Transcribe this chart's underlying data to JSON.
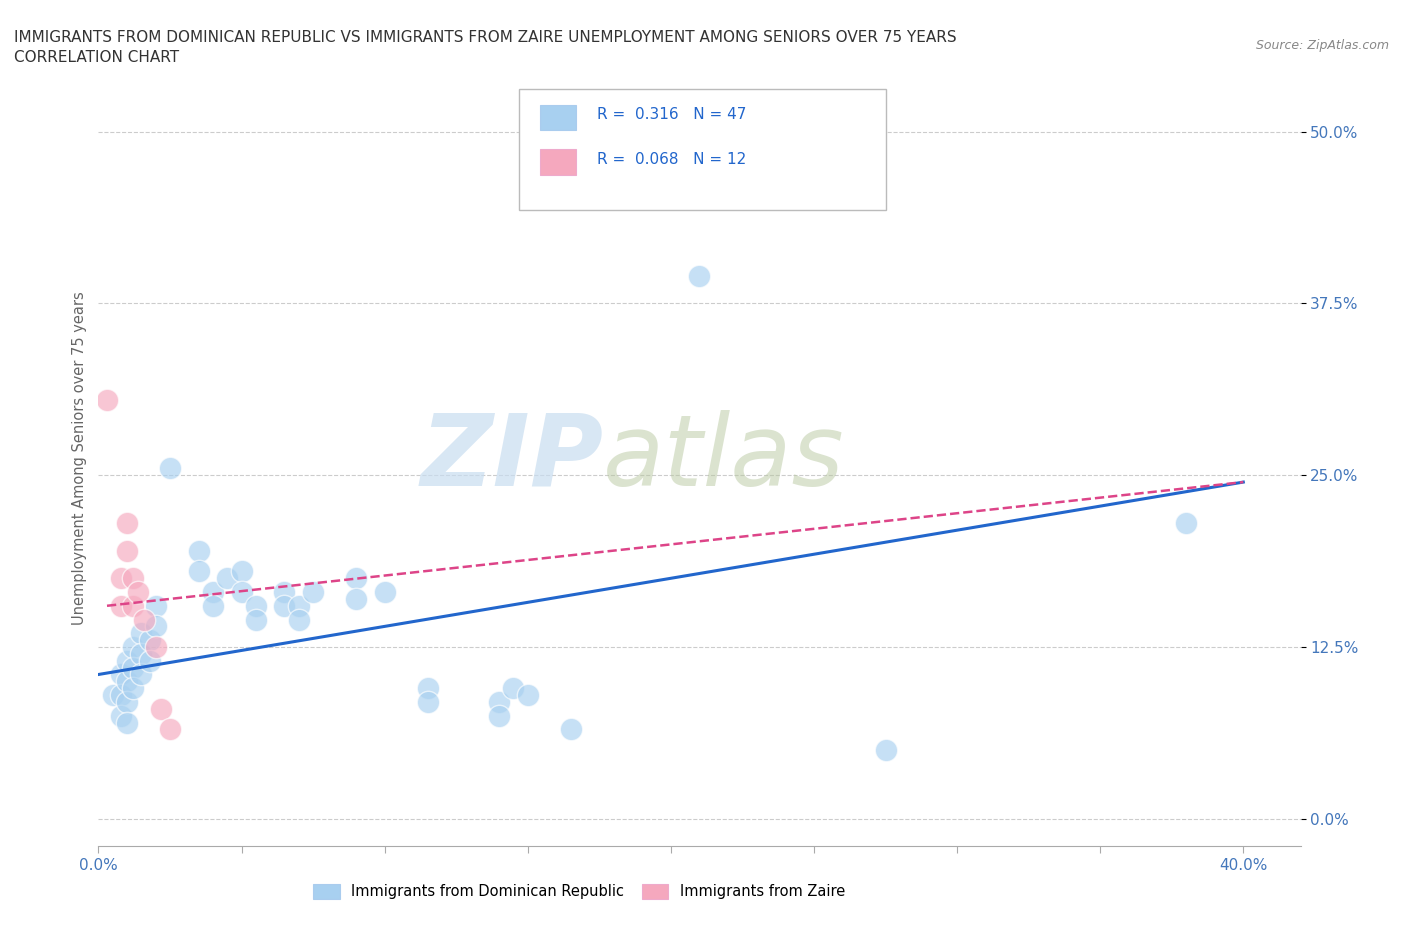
{
  "title_line1": "IMMIGRANTS FROM DOMINICAN REPUBLIC VS IMMIGRANTS FROM ZAIRE UNEMPLOYMENT AMONG SENIORS OVER 75 YEARS",
  "title_line2": "CORRELATION CHART",
  "source": "Source: ZipAtlas.com",
  "ylabel": "Unemployment Among Seniors over 75 years",
  "xlim": [
    0.0,
    0.42
  ],
  "ylim": [
    -0.02,
    0.545
  ],
  "yticks": [
    0.0,
    0.125,
    0.25,
    0.375,
    0.5
  ],
  "ytick_labels": [
    "0.0%",
    "12.5%",
    "25.0%",
    "37.5%",
    "50.0%"
  ],
  "xticks": [
    0.0,
    0.05,
    0.1,
    0.15,
    0.2,
    0.25,
    0.3,
    0.35,
    0.4
  ],
  "xtick_labels": [
    "0.0%",
    "",
    "",
    "",
    "",
    "",
    "",
    "",
    "40.0%"
  ],
  "legend_entry1": "R =  0.316   N = 47",
  "legend_entry2": "R =  0.068   N = 12",
  "legend_label1": "Immigrants from Dominican Republic",
  "legend_label2": "Immigrants from Zaire",
  "color_blue": "#a8d0f0",
  "color_pink": "#f5a8be",
  "color_line_blue": "#2266cc",
  "color_line_pink": "#dd4488",
  "watermark_zip": "ZIP",
  "watermark_atlas": "atlas",
  "blue_points": [
    [
      0.005,
      0.09
    ],
    [
      0.008,
      0.105
    ],
    [
      0.008,
      0.09
    ],
    [
      0.008,
      0.075
    ],
    [
      0.01,
      0.115
    ],
    [
      0.01,
      0.1
    ],
    [
      0.01,
      0.085
    ],
    [
      0.01,
      0.07
    ],
    [
      0.012,
      0.125
    ],
    [
      0.012,
      0.11
    ],
    [
      0.012,
      0.095
    ],
    [
      0.015,
      0.135
    ],
    [
      0.015,
      0.12
    ],
    [
      0.015,
      0.105
    ],
    [
      0.018,
      0.13
    ],
    [
      0.018,
      0.115
    ],
    [
      0.02,
      0.155
    ],
    [
      0.02,
      0.14
    ],
    [
      0.025,
      0.255
    ],
    [
      0.035,
      0.195
    ],
    [
      0.035,
      0.18
    ],
    [
      0.04,
      0.165
    ],
    [
      0.04,
      0.155
    ],
    [
      0.045,
      0.175
    ],
    [
      0.05,
      0.18
    ],
    [
      0.05,
      0.165
    ],
    [
      0.055,
      0.155
    ],
    [
      0.055,
      0.145
    ],
    [
      0.065,
      0.165
    ],
    [
      0.065,
      0.155
    ],
    [
      0.07,
      0.155
    ],
    [
      0.07,
      0.145
    ],
    [
      0.075,
      0.165
    ],
    [
      0.09,
      0.175
    ],
    [
      0.09,
      0.16
    ],
    [
      0.1,
      0.165
    ],
    [
      0.115,
      0.095
    ],
    [
      0.115,
      0.085
    ],
    [
      0.14,
      0.085
    ],
    [
      0.14,
      0.075
    ],
    [
      0.145,
      0.095
    ],
    [
      0.15,
      0.09
    ],
    [
      0.165,
      0.065
    ],
    [
      0.21,
      0.395
    ],
    [
      0.235,
      0.455
    ],
    [
      0.275,
      0.05
    ],
    [
      0.38,
      0.215
    ]
  ],
  "pink_points": [
    [
      0.003,
      0.305
    ],
    [
      0.008,
      0.175
    ],
    [
      0.008,
      0.155
    ],
    [
      0.01,
      0.215
    ],
    [
      0.01,
      0.195
    ],
    [
      0.012,
      0.175
    ],
    [
      0.012,
      0.155
    ],
    [
      0.014,
      0.165
    ],
    [
      0.016,
      0.145
    ],
    [
      0.02,
      0.125
    ],
    [
      0.022,
      0.08
    ],
    [
      0.025,
      0.065
    ]
  ],
  "blue_trend_x": [
    0.0,
    0.4
  ],
  "blue_trend_y": [
    0.105,
    0.245
  ],
  "pink_trend_x": [
    0.003,
    0.4
  ],
  "pink_trend_y": [
    0.155,
    0.245
  ]
}
